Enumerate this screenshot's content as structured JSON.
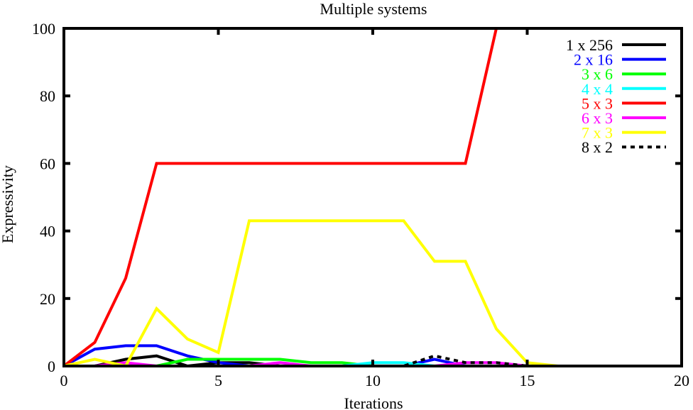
{
  "chart_data": {
    "type": "line",
    "title": "Multiple systems",
    "xlabel": "Iterations",
    "ylabel": "Expressivity",
    "xlim": [
      0,
      20
    ],
    "ylim": [
      0,
      100
    ],
    "xticks": [
      0,
      5,
      10,
      15,
      20
    ],
    "yticks": [
      0,
      20,
      40,
      60,
      80,
      100
    ],
    "grid": false,
    "legend": "top-right",
    "x": [
      0,
      1,
      2,
      3,
      4,
      5,
      6,
      7,
      8,
      9,
      10,
      11,
      12,
      13,
      14,
      15,
      16,
      17,
      18,
      19,
      20
    ],
    "series": [
      {
        "name": "1 x 256",
        "color": "#000000",
        "dashed": false,
        "values": [
          0,
          0,
          2,
          3,
          0,
          1,
          1,
          0,
          0,
          0,
          0,
          0,
          0,
          0,
          0,
          0,
          0,
          0,
          0,
          0,
          0
        ]
      },
      {
        "name": "2 x 16",
        "color": "#0000ff",
        "dashed": false,
        "values": [
          0,
          5,
          6,
          6,
          3,
          1,
          0,
          0,
          0,
          0,
          0,
          0,
          2,
          0,
          0,
          0,
          0,
          0,
          0,
          0,
          0
        ]
      },
      {
        "name": "3 x 6",
        "color": "#00ff00",
        "dashed": false,
        "values": [
          0,
          0,
          0,
          0,
          2,
          2,
          2,
          2,
          1,
          1,
          0,
          0,
          0,
          0,
          0,
          0,
          0,
          0,
          0,
          0,
          0
        ]
      },
      {
        "name": "4 x 4",
        "color": "#00ffff",
        "dashed": false,
        "values": [
          0,
          0,
          0,
          0,
          0,
          0,
          0,
          0,
          0,
          0,
          1,
          1,
          0,
          0,
          0,
          0,
          0,
          0,
          0,
          0,
          0
        ]
      },
      {
        "name": "5 x 3",
        "color": "#ff0000",
        "dashed": false,
        "values": [
          0,
          7,
          26,
          60,
          60,
          60,
          60,
          60,
          60,
          60,
          60,
          60,
          60,
          60,
          100,
          100,
          100,
          100,
          100,
          100,
          100
        ]
      },
      {
        "name": "6 x 3",
        "color": "#ff00ff",
        "dashed": false,
        "values": [
          0,
          0,
          1,
          0,
          0,
          0,
          0,
          1,
          0,
          0,
          0,
          0,
          0,
          1,
          1,
          0,
          0,
          0,
          0,
          0,
          0
        ]
      },
      {
        "name": "7 x 3",
        "color": "#ffff00",
        "dashed": false,
        "values": [
          0,
          2,
          0,
          17,
          8,
          4,
          43,
          43,
          43,
          43,
          43,
          43,
          31,
          31,
          11,
          1,
          0,
          0,
          0,
          0,
          0
        ]
      },
      {
        "name": "8 x 2",
        "color": "#000000",
        "dashed": true,
        "values": [
          0,
          0,
          0,
          0,
          0,
          0,
          0,
          0,
          0,
          0,
          0,
          0,
          3,
          1,
          1,
          0,
          0,
          0,
          0,
          0,
          0
        ]
      }
    ]
  }
}
